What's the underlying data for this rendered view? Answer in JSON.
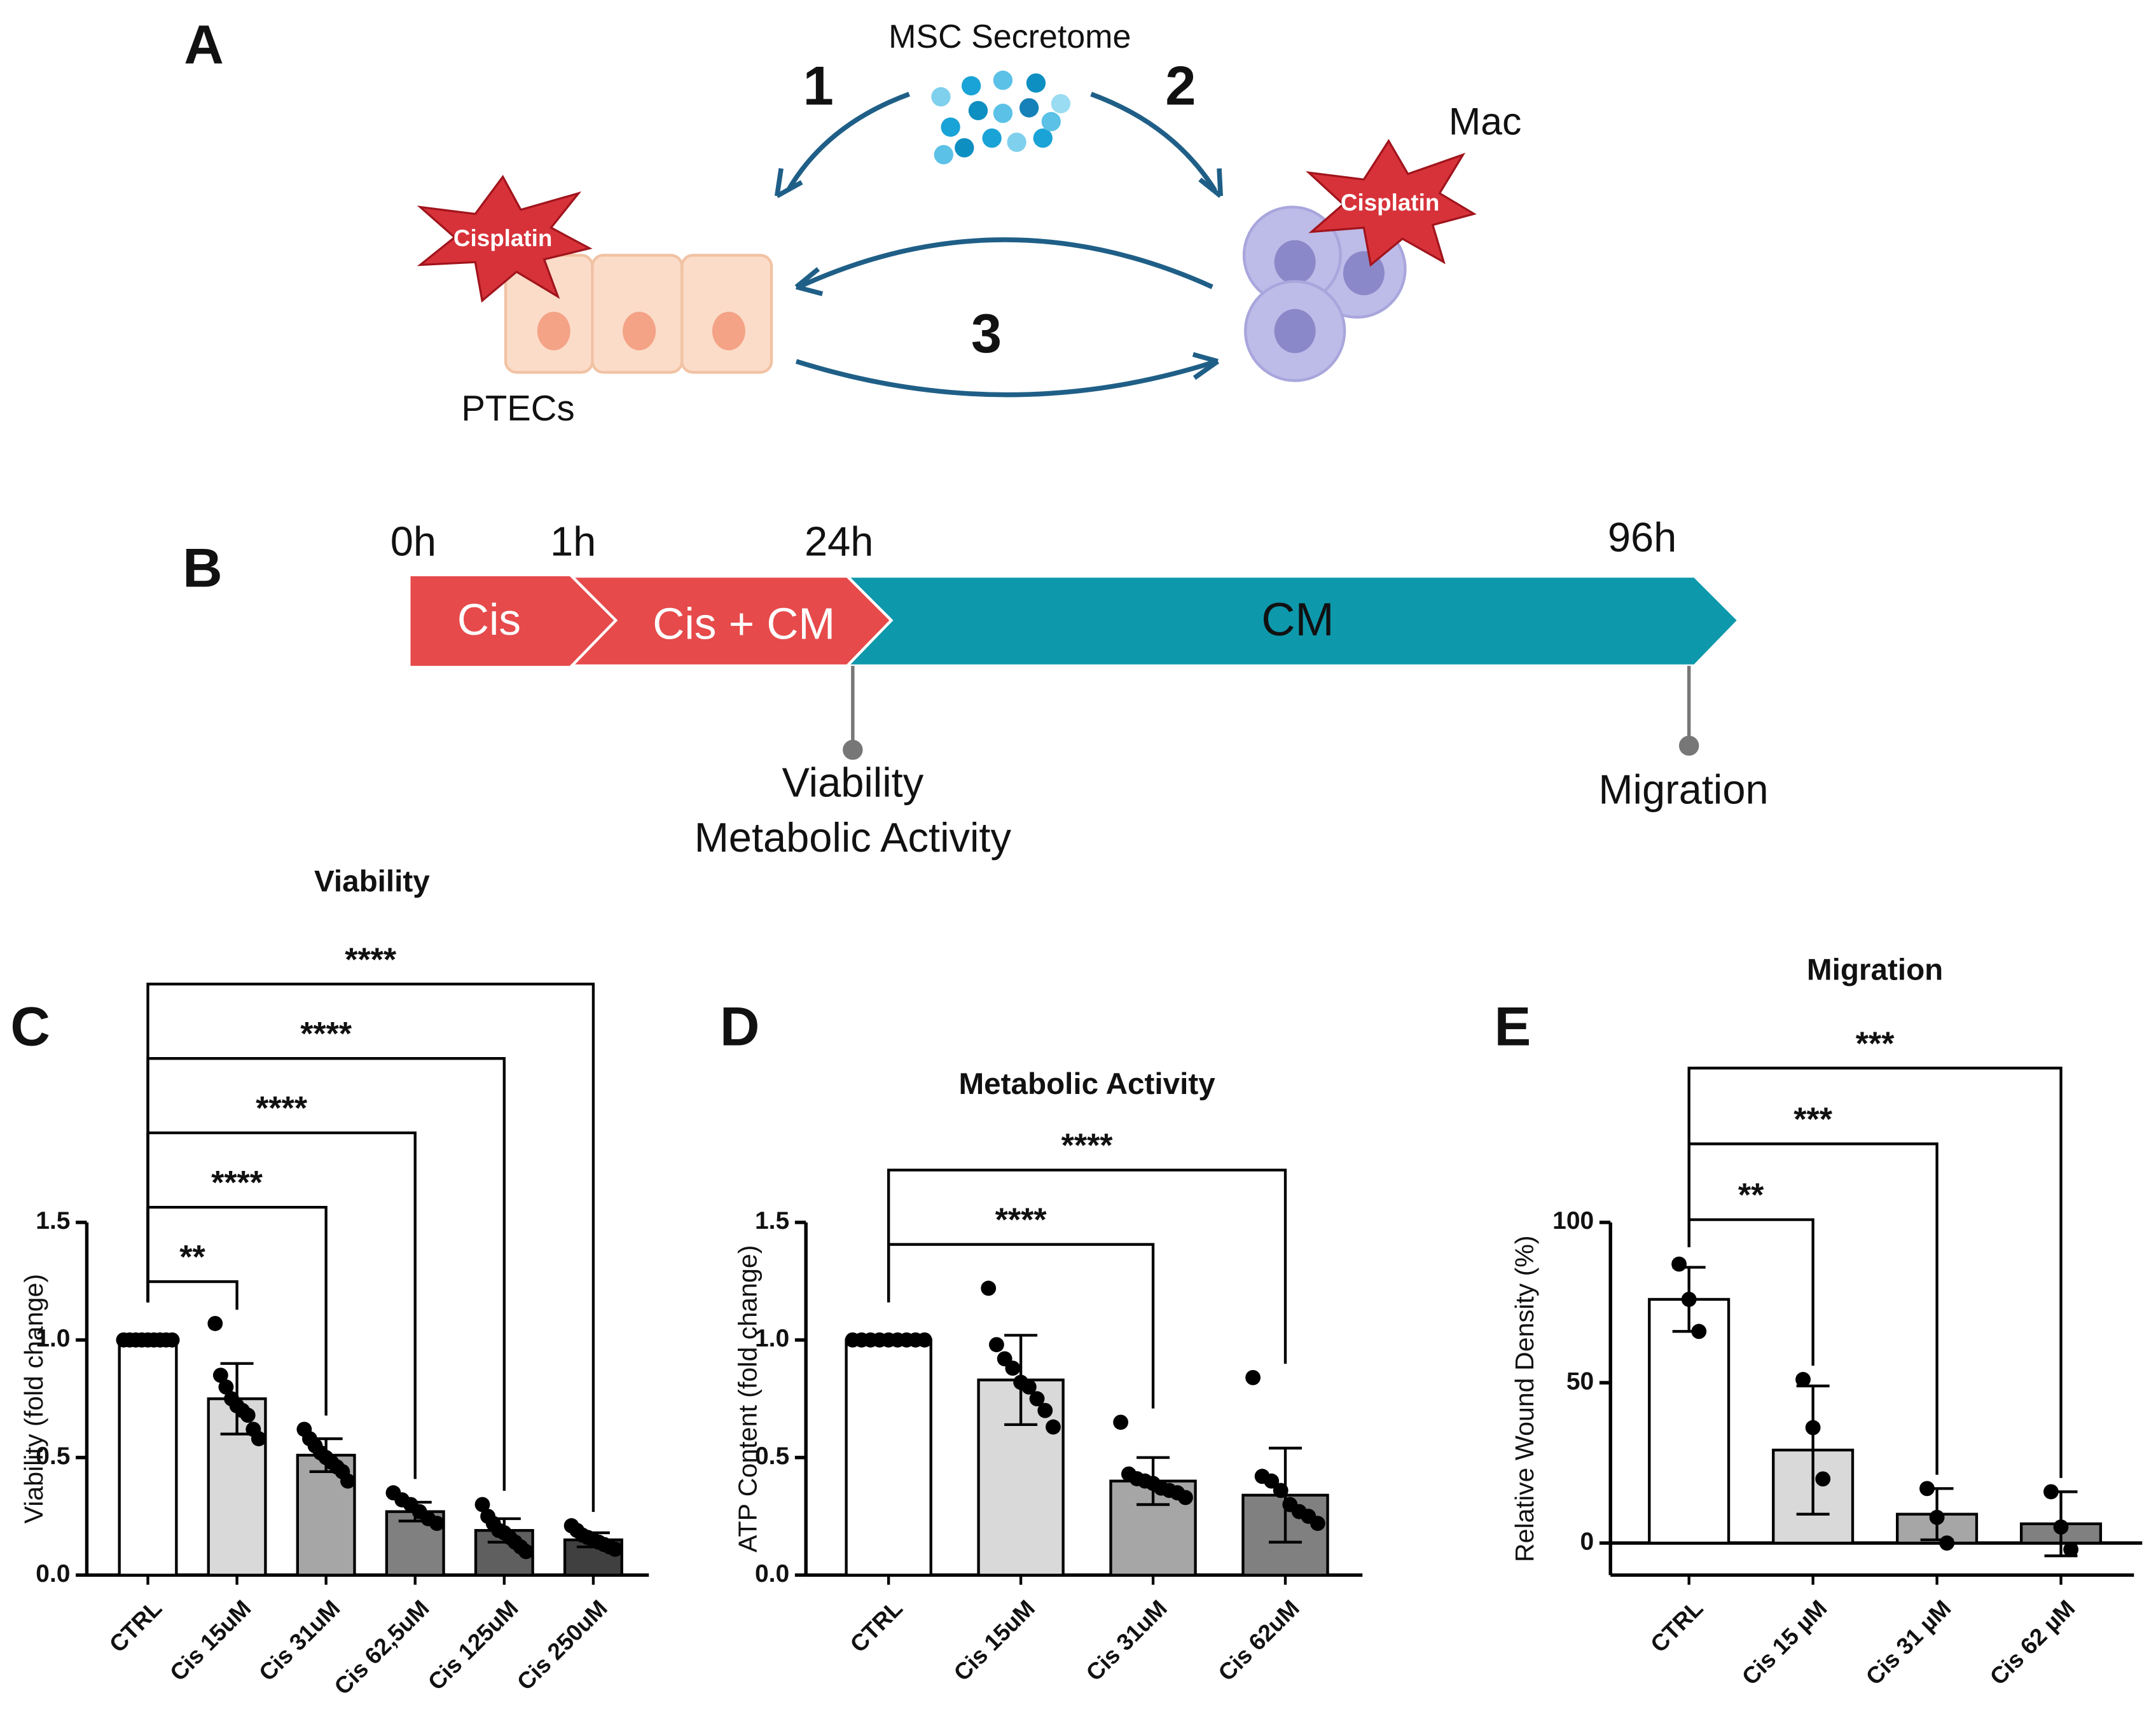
{
  "panel_a": {
    "label": "A",
    "secretome": "MSC Secretome",
    "steps": [
      "1",
      "2",
      "3"
    ],
    "macrophage": "Mac",
    "drug": [
      "Cisplatin",
      "Cisplatin"
    ],
    "cells": "PTECs"
  },
  "panel_b": {
    "label": "B",
    "times": [
      "0h",
      "1h",
      "24h",
      "96h"
    ],
    "phases": [
      "Cis",
      "Cis + CM",
      "CM"
    ],
    "readouts": [
      "Viability",
      "Metabolic Activity",
      "Migration"
    ]
  },
  "chart_data": [
    {
      "type": "bar",
      "panel": "C",
      "title": "Viability",
      "y_label": "Viability (fold change)",
      "categories": [
        "CTRL",
        "Cis 15uM",
        "Cis 31uM",
        "Cis 62,5uM",
        "Cis 125uM",
        "Cis 250uM"
      ],
      "colors": [
        "#ffffff",
        "#d9d9d9",
        "#a6a6a6",
        "#808080",
        "#5f5f5f",
        "#404040"
      ],
      "values": [
        1.0,
        0.75,
        0.51,
        0.27,
        0.19,
        0.15
      ],
      "errors": [
        0,
        0.15,
        0.07,
        0.04,
        0.05,
        0.03
      ],
      "points": [
        [
          1.0,
          1.0,
          1.0,
          1.0,
          1.0,
          1.0,
          1.0,
          1.0,
          1.0
        ],
        [
          1.07,
          0.85,
          0.8,
          0.75,
          0.72,
          0.7,
          0.68,
          0.62,
          0.58
        ],
        [
          0.62,
          0.58,
          0.55,
          0.52,
          0.5,
          0.48,
          0.46,
          0.44,
          0.4
        ],
        [
          0.35,
          0.32,
          0.3,
          0.27,
          0.24,
          0.22
        ],
        [
          0.3,
          0.25,
          0.22,
          0.19,
          0.18,
          0.16,
          0.14,
          0.12,
          0.1
        ],
        [
          0.21,
          0.19,
          0.17,
          0.16,
          0.15,
          0.14,
          0.13,
          0.12,
          0.11
        ]
      ],
      "ylim": [
        0,
        1.5
      ],
      "yticks": [
        {
          "value": 0,
          "label": "0.0"
        },
        0.5,
        {
          "value": 1,
          "label": "1.0"
        },
        1.5
      ],
      "significance": [
        {
          "from": 0,
          "to": 1,
          "label": "**"
        },
        {
          "from": 0,
          "to": 2,
          "label": "****"
        },
        {
          "from": 0,
          "to": 3,
          "label": "****"
        },
        {
          "from": 0,
          "to": 4,
          "label": "****"
        },
        {
          "from": 0,
          "to": 5,
          "label": "****"
        }
      ]
    },
    {
      "type": "bar",
      "panel": "D",
      "title": "Metabolic Activity",
      "y_label": "ATP Content (fold change)",
      "categories": [
        "CTRL",
        "Cis 15uM",
        "Cis 31uM",
        "Cis 62uM"
      ],
      "colors": [
        "#ffffff",
        "#d9d9d9",
        "#a6a6a6",
        "#808080"
      ],
      "values": [
        1.0,
        0.83,
        0.4,
        0.34
      ],
      "errors": [
        0,
        0.19,
        0.1,
        0.2
      ],
      "points": [
        [
          1.0,
          1.0,
          1.0,
          1.0,
          1.0,
          1.0,
          1.0,
          1.0,
          1.0
        ],
        [
          1.22,
          0.98,
          0.92,
          0.88,
          0.82,
          0.8,
          0.75,
          0.7,
          0.63
        ],
        [
          0.65,
          0.43,
          0.41,
          0.4,
          0.39,
          0.37,
          0.36,
          0.35,
          0.33
        ],
        [
          0.84,
          0.42,
          0.4,
          0.36,
          0.3,
          0.27,
          0.25,
          0.22
        ]
      ],
      "ylim": [
        0,
        1.5
      ],
      "yticks": [
        {
          "value": 0,
          "label": "0.0"
        },
        0.5,
        {
          "value": 1,
          "label": "1.0"
        },
        1.5
      ],
      "significance": [
        {
          "from": 0,
          "to": 2,
          "label": "****"
        },
        {
          "from": 0,
          "to": 3,
          "label": "****"
        }
      ]
    },
    {
      "type": "bar",
      "panel": "E",
      "title": "Migration",
      "y_label": "Relative Wound Density (%)",
      "categories": [
        "CTRL",
        "Cis 15 µM",
        "Cis 31 µM",
        "Cis 62 µM"
      ],
      "colors": [
        "#ffffff",
        "#d9d9d9",
        "#a6a6a6",
        "#808080"
      ],
      "values": [
        76,
        29,
        9,
        6
      ],
      "errors": [
        10,
        20,
        8,
        10
      ],
      "points": [
        [
          87,
          76,
          66
        ],
        [
          51,
          36,
          20
        ],
        [
          17,
          8,
          0
        ],
        [
          16,
          5,
          -2
        ]
      ],
      "ylim": [
        -10,
        100
      ],
      "yticks": [
        0,
        50,
        100
      ],
      "zero_line": true,
      "significance": [
        {
          "from": 0,
          "to": 1,
          "label": "**"
        },
        {
          "from": 0,
          "to": 2,
          "label": "***"
        },
        {
          "from": 0,
          "to": 3,
          "label": "***"
        }
      ]
    }
  ]
}
